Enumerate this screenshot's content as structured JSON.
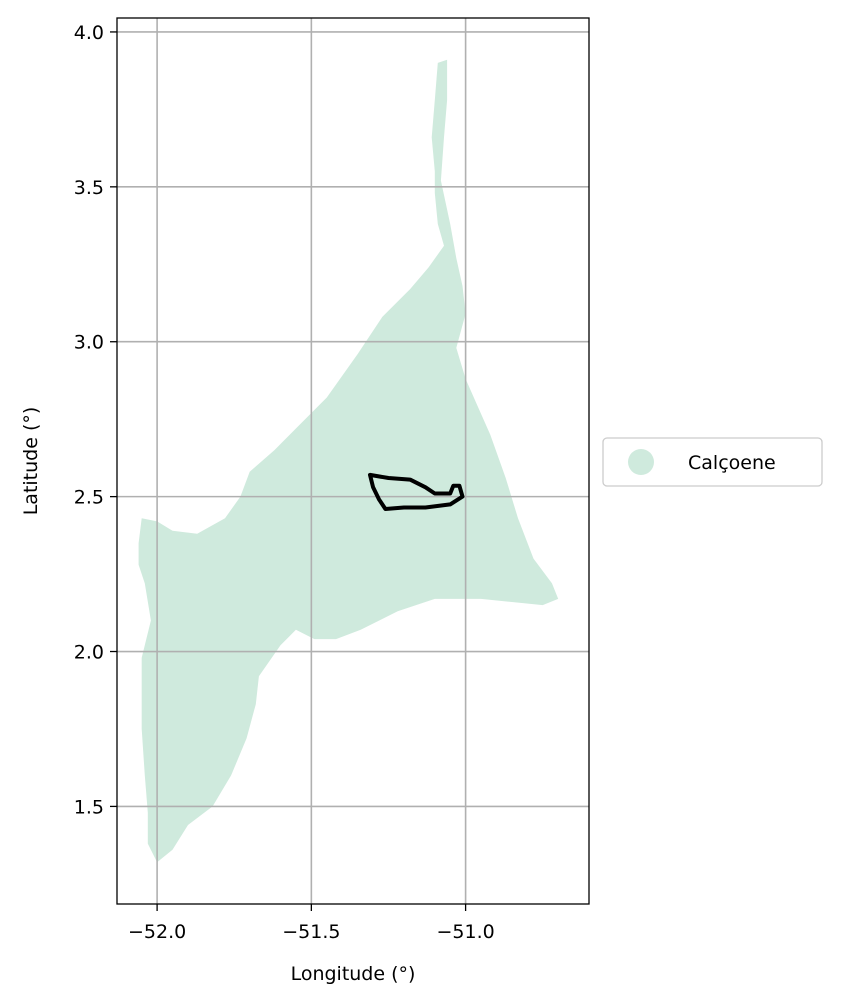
{
  "chart_data": {
    "type": "map",
    "xlabel": "Longitude (°)",
    "ylabel": "Latitude (°)",
    "xlim": [
      -52.13,
      -50.6
    ],
    "ylim": [
      1.185,
      4.045
    ],
    "xticks": [
      -52.0,
      -51.5,
      -51.0
    ],
    "xtick_labels": [
      "−52.0",
      "−51.5",
      "−51.0"
    ],
    "yticks": [
      1.5,
      2.0,
      2.5,
      3.0,
      3.5,
      4.0
    ],
    "ytick_labels": [
      "1.5",
      "2.0",
      "2.5",
      "3.0",
      "3.5",
      "4.0"
    ],
    "grid": true,
    "legend": {
      "placement": "right",
      "entries": [
        {
          "label": "Calçoene",
          "color": "#cfeadd"
        }
      ]
    },
    "region": {
      "name": "Calçoene",
      "fill_color": "#cfeadd",
      "polygon": [
        [
          -51.06,
          3.91
        ],
        [
          -51.09,
          3.9
        ],
        [
          -51.1,
          3.78
        ],
        [
          -51.11,
          3.66
        ],
        [
          -51.1,
          3.55
        ],
        [
          -51.1,
          3.48
        ],
        [
          -51.09,
          3.38
        ],
        [
          -51.07,
          3.31
        ],
        [
          -51.12,
          3.24
        ],
        [
          -51.18,
          3.17
        ],
        [
          -51.27,
          3.08
        ],
        [
          -51.35,
          2.96
        ],
        [
          -51.45,
          2.82
        ],
        [
          -51.55,
          2.72
        ],
        [
          -51.62,
          2.65
        ],
        [
          -51.7,
          2.58
        ],
        [
          -51.73,
          2.5
        ],
        [
          -51.78,
          2.43
        ],
        [
          -51.87,
          2.38
        ],
        [
          -51.95,
          2.39
        ],
        [
          -52.0,
          2.42
        ],
        [
          -52.05,
          2.43
        ],
        [
          -52.06,
          2.35
        ],
        [
          -52.06,
          2.28
        ],
        [
          -52.04,
          2.22
        ],
        [
          -52.02,
          2.1
        ],
        [
          -52.05,
          1.98
        ],
        [
          -52.05,
          1.88
        ],
        [
          -52.05,
          1.75
        ],
        [
          -52.04,
          1.6
        ],
        [
          -52.03,
          1.48
        ],
        [
          -52.03,
          1.38
        ],
        [
          -52.0,
          1.32
        ],
        [
          -51.95,
          1.36
        ],
        [
          -51.9,
          1.44
        ],
        [
          -51.82,
          1.5
        ],
        [
          -51.76,
          1.6
        ],
        [
          -51.71,
          1.72
        ],
        [
          -51.68,
          1.83
        ],
        [
          -51.67,
          1.92
        ],
        [
          -51.6,
          2.02
        ],
        [
          -51.55,
          2.07
        ],
        [
          -51.49,
          2.04
        ],
        [
          -51.42,
          2.04
        ],
        [
          -51.34,
          2.07
        ],
        [
          -51.22,
          2.13
        ],
        [
          -51.1,
          2.17
        ],
        [
          -50.95,
          2.17
        ],
        [
          -50.85,
          2.16
        ],
        [
          -50.75,
          2.15
        ],
        [
          -50.7,
          2.17
        ],
        [
          -50.72,
          2.22
        ],
        [
          -50.78,
          2.3
        ],
        [
          -50.83,
          2.43
        ],
        [
          -50.87,
          2.56
        ],
        [
          -50.92,
          2.7
        ],
        [
          -50.96,
          2.79
        ],
        [
          -51.0,
          2.88
        ],
        [
          -51.03,
          2.98
        ],
        [
          -51.0,
          3.09
        ],
        [
          -51.01,
          3.18
        ],
        [
          -51.03,
          3.27
        ],
        [
          -51.05,
          3.38
        ],
        [
          -51.08,
          3.52
        ],
        [
          -51.07,
          3.66
        ],
        [
          -51.06,
          3.78
        ]
      ]
    },
    "outline": {
      "stroke_color": "#000000",
      "polygon": [
        [
          -51.31,
          2.57
        ],
        [
          -51.25,
          2.56
        ],
        [
          -51.18,
          2.555
        ],
        [
          -51.13,
          2.53
        ],
        [
          -51.1,
          2.51
        ],
        [
          -51.05,
          2.51
        ],
        [
          -51.04,
          2.535
        ],
        [
          -51.02,
          2.535
        ],
        [
          -51.01,
          2.5
        ],
        [
          -51.05,
          2.475
        ],
        [
          -51.13,
          2.465
        ],
        [
          -51.2,
          2.465
        ],
        [
          -51.26,
          2.46
        ],
        [
          -51.28,
          2.49
        ],
        [
          -51.3,
          2.53
        ]
      ]
    }
  }
}
